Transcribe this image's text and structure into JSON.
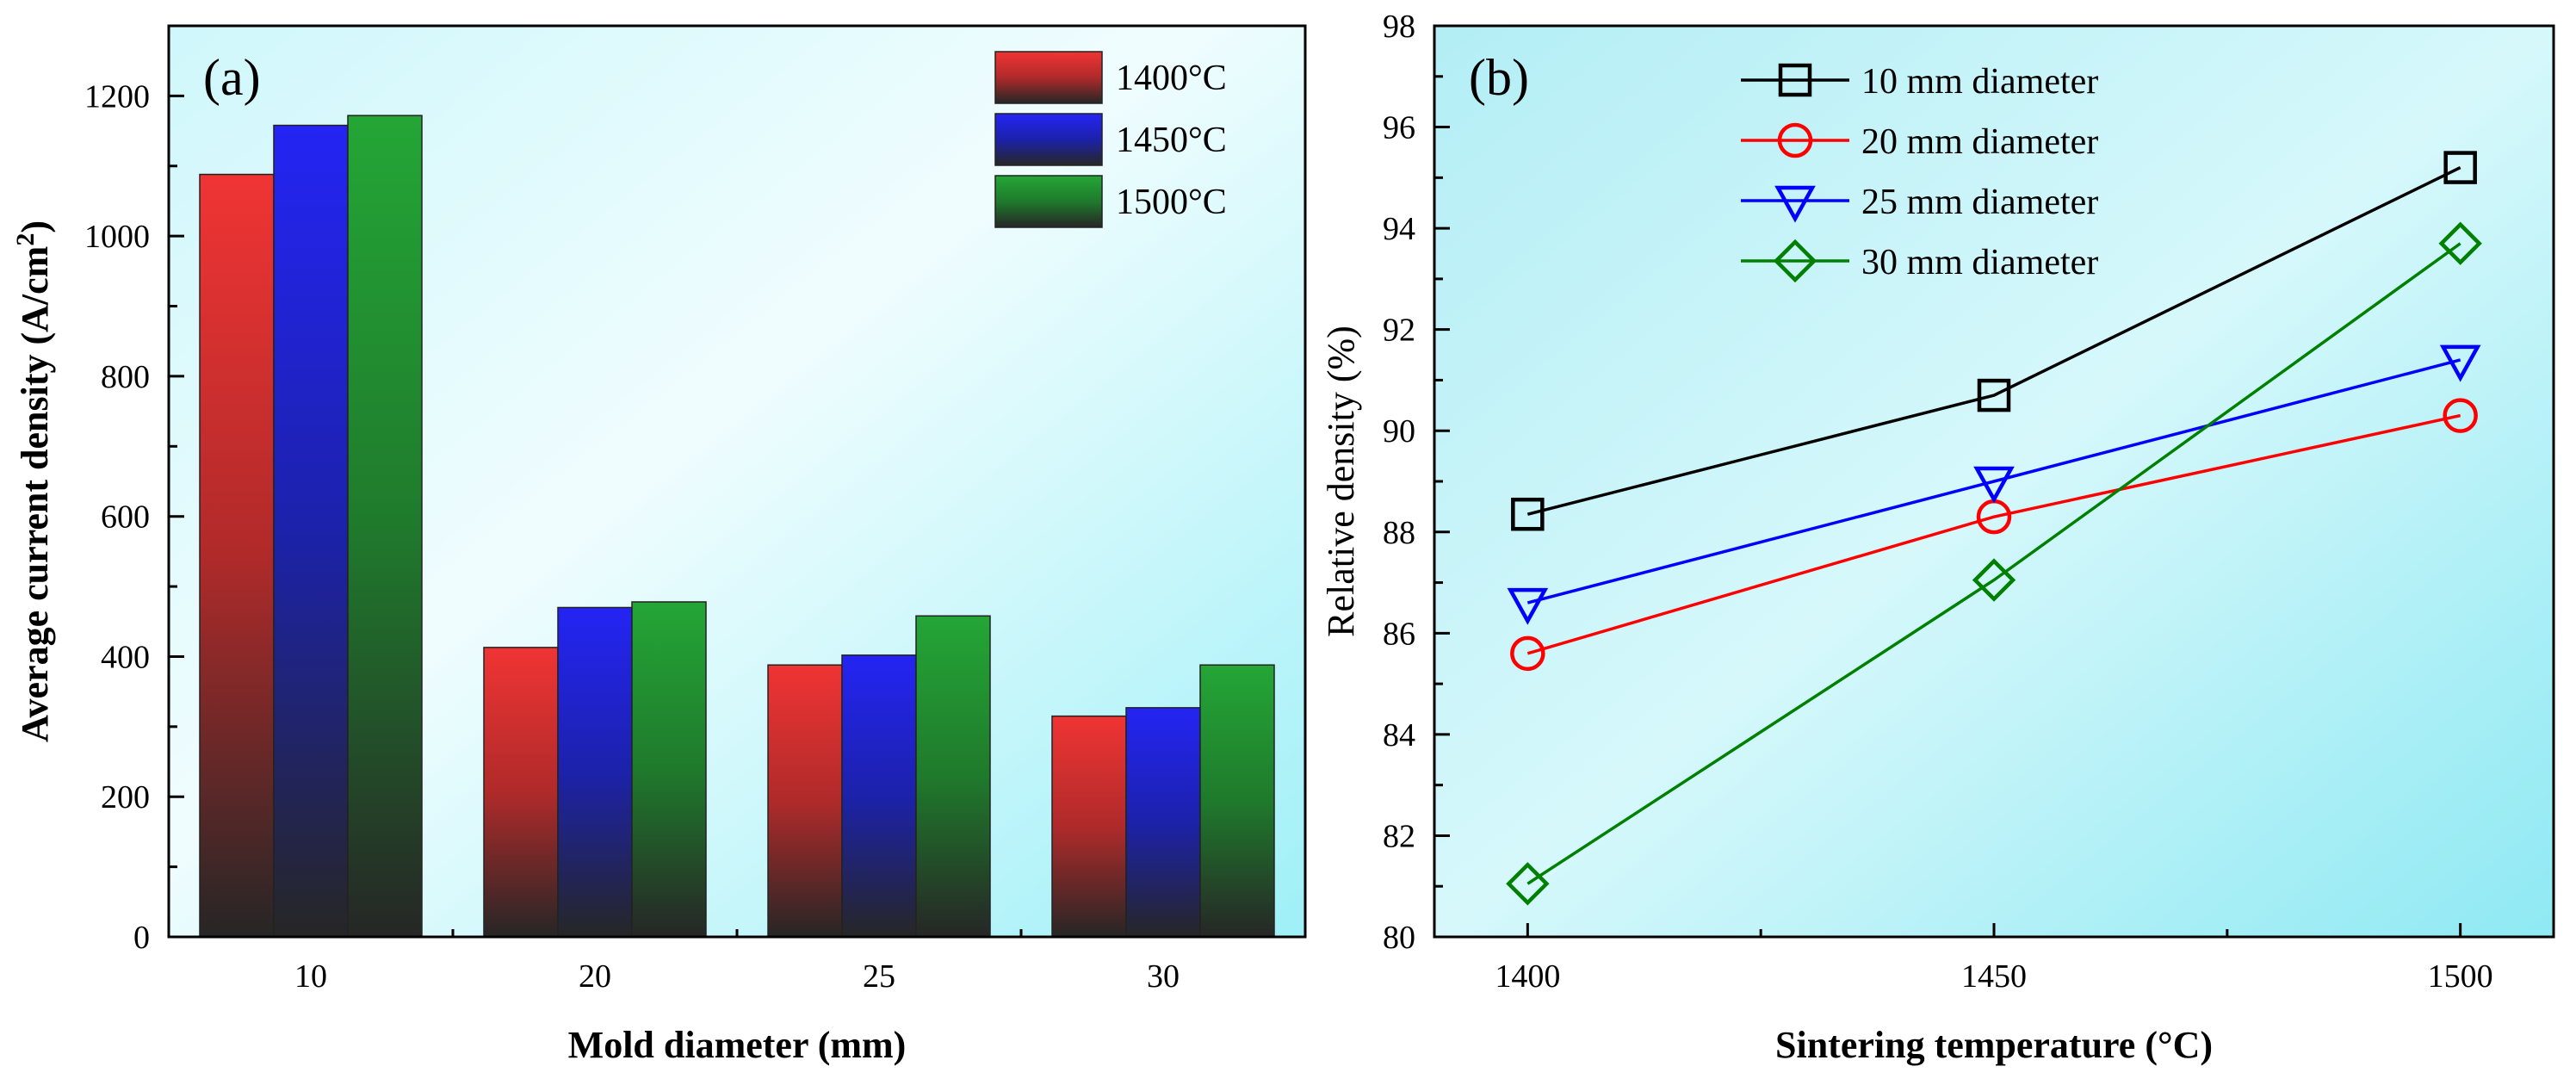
{
  "chart_data": [
    {
      "type": "bar",
      "panel_label": "(a)",
      "xlabel": "Mold diameter (mm)",
      "ylabel": "Average current density (A/cm",
      "ylabel_sup": "2",
      "ylabel_end": ")",
      "categories": [
        "10",
        "20",
        "25",
        "30"
      ],
      "ylim": [
        0,
        1300
      ],
      "yticks": [
        "0",
        "200",
        "400",
        "600",
        "800",
        "1000",
        "1200"
      ],
      "legend_position": "top-right",
      "series": [
        {
          "name": "1400°C",
          "color": "#e83030",
          "values": [
            1088,
            413,
            388,
            315
          ]
        },
        {
          "name": "1450°C",
          "color": "#2222f0",
          "values": [
            1158,
            470,
            402,
            327
          ]
        },
        {
          "name": "1500°C",
          "color": "#22a033",
          "values": [
            1172,
            478,
            458,
            388
          ]
        }
      ]
    },
    {
      "type": "line",
      "panel_label": "(b)",
      "xlabel": "Sintering temperature (°C)",
      "ylabel": "Relative density (%)",
      "x": [
        1400,
        1450,
        1500
      ],
      "xticks": [
        "1400",
        "1450",
        "1500"
      ],
      "xlim": [
        1390,
        1510
      ],
      "ylim": [
        80,
        98
      ],
      "yticks": [
        "80",
        "82",
        "84",
        "86",
        "88",
        "90",
        "92",
        "94",
        "96",
        "98"
      ],
      "legend_position": "top-center",
      "series": [
        {
          "name": "10 mm diameter",
          "color": "#000000",
          "marker": "square",
          "values": [
            88.35,
            90.7,
            95.2
          ]
        },
        {
          "name": "20 mm diameter",
          "color": "#ff0000",
          "marker": "circle",
          "values": [
            85.6,
            88.3,
            90.3
          ]
        },
        {
          "name": "25 mm diameter",
          "color": "#0000ff",
          "marker": "triangle-down",
          "values": [
            86.6,
            89.0,
            91.4
          ]
        },
        {
          "name": "30 mm diameter",
          "color": "#008000",
          "marker": "diamond",
          "values": [
            81.05,
            87.05,
            93.7
          ]
        }
      ]
    }
  ]
}
